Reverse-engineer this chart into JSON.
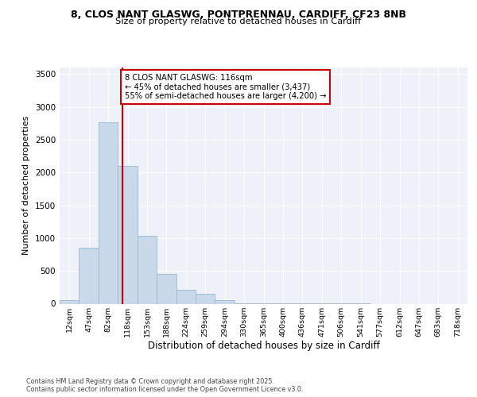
{
  "title_line1": "8, CLOS NANT GLASWG, PONTPRENNAU, CARDIFF, CF23 8NB",
  "title_line2": "Size of property relative to detached houses in Cardiff",
  "xlabel": "Distribution of detached houses by size in Cardiff",
  "ylabel": "Number of detached properties",
  "categories": [
    "12sqm",
    "47sqm",
    "82sqm",
    "118sqm",
    "153sqm",
    "188sqm",
    "224sqm",
    "259sqm",
    "294sqm",
    "330sqm",
    "365sqm",
    "400sqm",
    "436sqm",
    "471sqm",
    "506sqm",
    "541sqm",
    "577sqm",
    "612sqm",
    "647sqm",
    "683sqm",
    "718sqm"
  ],
  "values": [
    60,
    850,
    2770,
    2100,
    1030,
    450,
    215,
    150,
    60,
    10,
    5,
    3,
    2,
    1,
    1,
    1,
    0,
    0,
    0,
    0,
    0
  ],
  "bar_color": "#c9d9ea",
  "bar_edge_color": "#9ab8d0",
  "vline_color": "#cc0000",
  "annotation_text": "8 CLOS NANT GLASWG: 116sqm\n← 45% of detached houses are smaller (3,437)\n55% of semi-detached houses are larger (4,200) →",
  "annotation_box_color": "#ffffff",
  "annotation_box_edge": "#cc0000",
  "ylim": [
    0,
    3600
  ],
  "yticks": [
    0,
    500,
    1000,
    1500,
    2000,
    2500,
    3000,
    3500
  ],
  "footnote": "Contains HM Land Registry data © Crown copyright and database right 2025.\nContains public sector information licensed under the Open Government Licence v3.0.",
  "bg_color": "#eef2f8",
  "grid_color": "#ffffff"
}
